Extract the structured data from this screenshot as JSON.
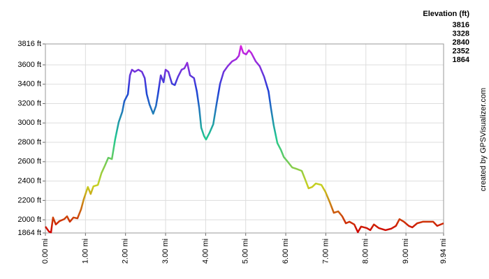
{
  "chart_data": {
    "type": "line",
    "legend_title": "Elevation (ft)",
    "credit": "created by GPSVisualizer.com",
    "color_scale": [
      {
        "value": 3816,
        "color": "#e020e0"
      },
      {
        "value": 3328,
        "color": "#2040d8"
      },
      {
        "value": 2840,
        "color": "#20c890"
      },
      {
        "value": 2352,
        "color": "#c8d020"
      },
      {
        "value": 1864,
        "color": "#d00000"
      }
    ],
    "xlim": [
      0,
      9.94
    ],
    "ylim": [
      1864,
      3816
    ],
    "grid": true,
    "xticks": [
      {
        "value": 0,
        "label": "0.00 mi"
      },
      {
        "value": 1,
        "label": "1.00 mi"
      },
      {
        "value": 2,
        "label": "2.00 mi"
      },
      {
        "value": 3,
        "label": "3.00 mi"
      },
      {
        "value": 4,
        "label": "4.00 mi"
      },
      {
        "value": 5,
        "label": "5.00 mi"
      },
      {
        "value": 6,
        "label": "6.00 mi"
      },
      {
        "value": 7,
        "label": "7.00 mi"
      },
      {
        "value": 8,
        "label": "8.00 mi"
      },
      {
        "value": 9,
        "label": "9.00 mi"
      },
      {
        "value": 9.94,
        "label": "9.94 mi"
      }
    ],
    "yticks": [
      {
        "value": 1864,
        "label": "1864 ft"
      },
      {
        "value": 2000,
        "label": "2000 ft"
      },
      {
        "value": 2200,
        "label": "2200 ft"
      },
      {
        "value": 2400,
        "label": "2400 ft"
      },
      {
        "value": 2600,
        "label": "2600 ft"
      },
      {
        "value": 2800,
        "label": "2800 ft"
      },
      {
        "value": 3000,
        "label": "3000 ft"
      },
      {
        "value": 3200,
        "label": "3200 ft"
      },
      {
        "value": 3400,
        "label": "3400 ft"
      },
      {
        "value": 3600,
        "label": "3600 ft"
      },
      {
        "value": 3816,
        "label": "3816 ft"
      }
    ],
    "x": [
      0,
      0.09,
      0.14,
      0.19,
      0.26,
      0.35,
      0.47,
      0.54,
      0.61,
      0.7,
      0.8,
      0.89,
      0.96,
      1.06,
      1.13,
      1.2,
      1.31,
      1.4,
      1.48,
      1.57,
      1.66,
      1.74,
      1.83,
      1.92,
      1.97,
      2.06,
      2.11,
      2.16,
      2.23,
      2.32,
      2.41,
      2.48,
      2.53,
      2.6,
      2.69,
      2.76,
      2.81,
      2.88,
      2.95,
      3.0,
      3.07,
      3.16,
      3.23,
      3.31,
      3.4,
      3.47,
      3.54,
      3.61,
      3.71,
      3.78,
      3.84,
      3.89,
      3.96,
      4.01,
      4.1,
      4.19,
      4.27,
      4.36,
      4.45,
      4.55,
      4.66,
      4.76,
      4.83,
      4.88,
      4.94,
      5.01,
      5.08,
      5.14,
      5.25,
      5.35,
      5.46,
      5.57,
      5.63,
      5.7,
      5.79,
      5.88,
      5.95,
      6.05,
      6.16,
      6.26,
      6.4,
      6.49,
      6.57,
      6.66,
      6.75,
      6.89,
      6.99,
      7.1,
      7.2,
      7.31,
      7.41,
      7.5,
      7.59,
      7.71,
      7.8,
      7.88,
      8.02,
      8.11,
      8.2,
      8.32,
      8.49,
      8.63,
      8.75,
      8.84,
      8.95,
      9.07,
      9.16,
      9.28,
      9.42,
      9.54,
      9.68,
      9.78,
      9.94
    ],
    "values": [
      1930,
      1878,
      1870,
      2024,
      1952,
      1986,
      2007,
      2036,
      1980,
      2024,
      2015,
      2108,
      2216,
      2339,
      2267,
      2346,
      2360,
      2483,
      2555,
      2641,
      2627,
      2829,
      3009,
      3117,
      3225,
      3297,
      3492,
      3550,
      3528,
      3550,
      3528,
      3463,
      3297,
      3189,
      3095,
      3175,
      3297,
      3492,
      3420,
      3550,
      3528,
      3405,
      3391,
      3477,
      3550,
      3564,
      3622,
      3492,
      3463,
      3326,
      3153,
      2951,
      2865,
      2829,
      2901,
      2987,
      3189,
      3405,
      3528,
      3586,
      3636,
      3658,
      3694,
      3795,
      3723,
      3708,
      3751,
      3723,
      3636,
      3586,
      3477,
      3326,
      3153,
      2973,
      2793,
      2721,
      2649,
      2599,
      2541,
      2527,
      2505,
      2411,
      2325,
      2339,
      2375,
      2360,
      2289,
      2180,
      2072,
      2087,
      2036,
      1964,
      1980,
      1952,
      1872,
      1930,
      1915,
      1893,
      1952,
      1915,
      1893,
      1908,
      1937,
      2007,
      1980,
      1937,
      1922,
      1964,
      1980,
      1980,
      1980,
      1937,
      1964
    ]
  }
}
